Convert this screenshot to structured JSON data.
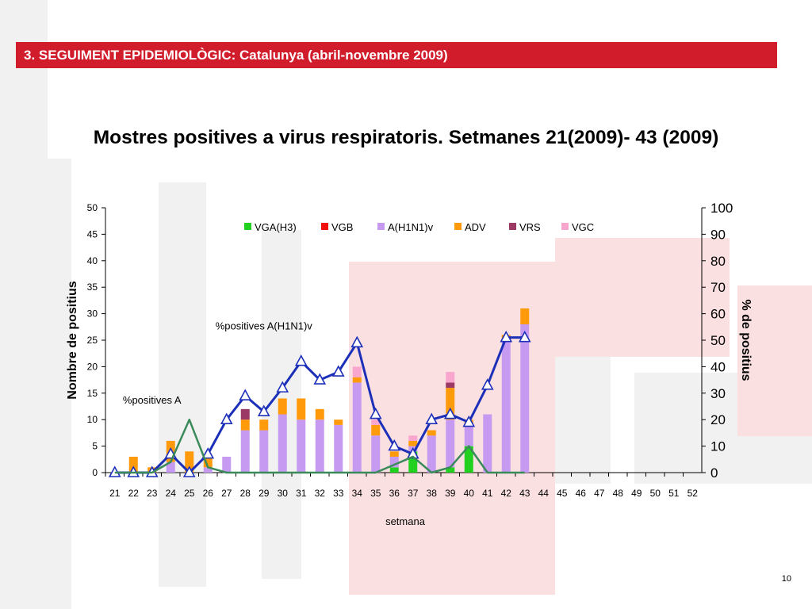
{
  "header": {
    "section_title": "3. SEGUIMENT EPIDEMIOLÒGIC: Catalunya (abril-novembre 2009)"
  },
  "slide": {
    "title": "Mostres positives a virus respiratoris. Setmanes 21(2009)- 43 (2009)",
    "page_number": "10"
  },
  "colors": {
    "header_red": "#d11c2b",
    "VGA(H3)": "#22d11f",
    "VGB": "#f2100b",
    "A(H1N1)v": "#c59af0",
    "ADV": "#ff9a0a",
    "VRS": "#9b3a65",
    "VGC": "#f9a6cf",
    "pct_h1n1_line": "#1c2fb8",
    "pct_a_line": "#3a8a5a"
  },
  "chart_data": {
    "type": "bar",
    "stacked": true,
    "categories": [
      "21",
      "22",
      "23",
      "24",
      "25",
      "26",
      "27",
      "28",
      "29",
      "30",
      "31",
      "32",
      "33",
      "34",
      "35",
      "36",
      "37",
      "38",
      "39",
      "40",
      "41",
      "42",
      "43",
      "44",
      "45",
      "46",
      "47",
      "48",
      "49",
      "50",
      "51",
      "52"
    ],
    "xlabel": "setmana",
    "ylabel": "Nombre de positius",
    "y2label": "% de positius",
    "ylim": [
      0,
      50
    ],
    "yticks": [
      0,
      5,
      10,
      15,
      20,
      25,
      30,
      35,
      40,
      45,
      50
    ],
    "y2lim": [
      0,
      100
    ],
    "y2ticks": [
      0,
      10,
      20,
      30,
      40,
      50,
      60,
      70,
      80,
      90,
      100
    ],
    "legend_position": "top",
    "series": [
      {
        "name": "VGA(H3)",
        "values": [
          0,
          0,
          0,
          0,
          0,
          0,
          0,
          0,
          0,
          0,
          0,
          0,
          0,
          0,
          0,
          1,
          4,
          0,
          1,
          5,
          0,
          0,
          0,
          0,
          0,
          0,
          0,
          0,
          0,
          0,
          0,
          0
        ]
      },
      {
        "name": "VGB",
        "values": [
          0,
          0,
          0,
          0,
          0,
          0,
          0,
          0,
          0,
          0,
          0,
          0,
          0,
          0,
          0,
          0,
          0,
          0,
          0,
          0,
          0,
          0,
          0,
          0,
          0,
          0,
          0,
          0,
          0,
          0,
          0,
          0
        ]
      },
      {
        "name": "A(H1N1)v",
        "values": [
          0,
          0,
          0,
          2,
          0,
          1,
          3,
          8,
          8,
          11,
          10,
          10,
          9,
          17,
          7,
          2,
          1,
          7,
          9,
          4,
          11,
          25,
          28,
          0,
          0,
          0,
          0,
          0,
          0,
          0,
          0,
          0
        ]
      },
      {
        "name": "ADV",
        "values": [
          0,
          3,
          1,
          4,
          4,
          2,
          0,
          2,
          2,
          3,
          4,
          2,
          1,
          1,
          2,
          1,
          1,
          1,
          6,
          1,
          0,
          1,
          3,
          0,
          0,
          0,
          0,
          0,
          0,
          0,
          0,
          0
        ]
      },
      {
        "name": "VRS",
        "values": [
          0,
          0,
          0,
          0,
          0,
          0,
          0,
          2,
          0,
          0,
          0,
          0,
          0,
          0,
          0,
          0,
          0,
          0,
          1,
          0,
          0,
          0,
          0,
          0,
          0,
          0,
          0,
          0,
          0,
          0,
          0,
          0
        ]
      },
      {
        "name": "VGC",
        "values": [
          0,
          0,
          0,
          0,
          0,
          0,
          0,
          0,
          0,
          0,
          0,
          0,
          0,
          2,
          1,
          0,
          1,
          0,
          2,
          0,
          0,
          0,
          0,
          0,
          0,
          0,
          0,
          0,
          0,
          0,
          0,
          0
        ]
      }
    ],
    "line_series": [
      {
        "name": "%positives A(H1N1)v",
        "axis": "right",
        "marker": "triangle",
        "values": [
          0,
          0,
          0,
          7,
          0,
          7,
          20,
          29,
          23,
          32,
          42,
          35,
          38,
          49,
          22,
          10,
          7,
          20,
          22,
          19,
          33,
          51,
          51
        ]
      },
      {
        "name": "%positives A",
        "axis": "right",
        "marker": "none",
        "values": [
          0,
          0,
          0,
          4,
          20,
          2,
          0,
          0,
          0,
          0,
          0,
          0,
          0,
          0,
          0,
          3,
          6,
          0,
          2,
          10,
          0,
          0,
          0
        ]
      }
    ],
    "annotations": [
      {
        "text": "%positives A(H1N1)v",
        "near_category": "29",
        "near_y2": 54
      },
      {
        "text": "%positives A",
        "near_category": "23",
        "near_y2": 26
      }
    ]
  }
}
